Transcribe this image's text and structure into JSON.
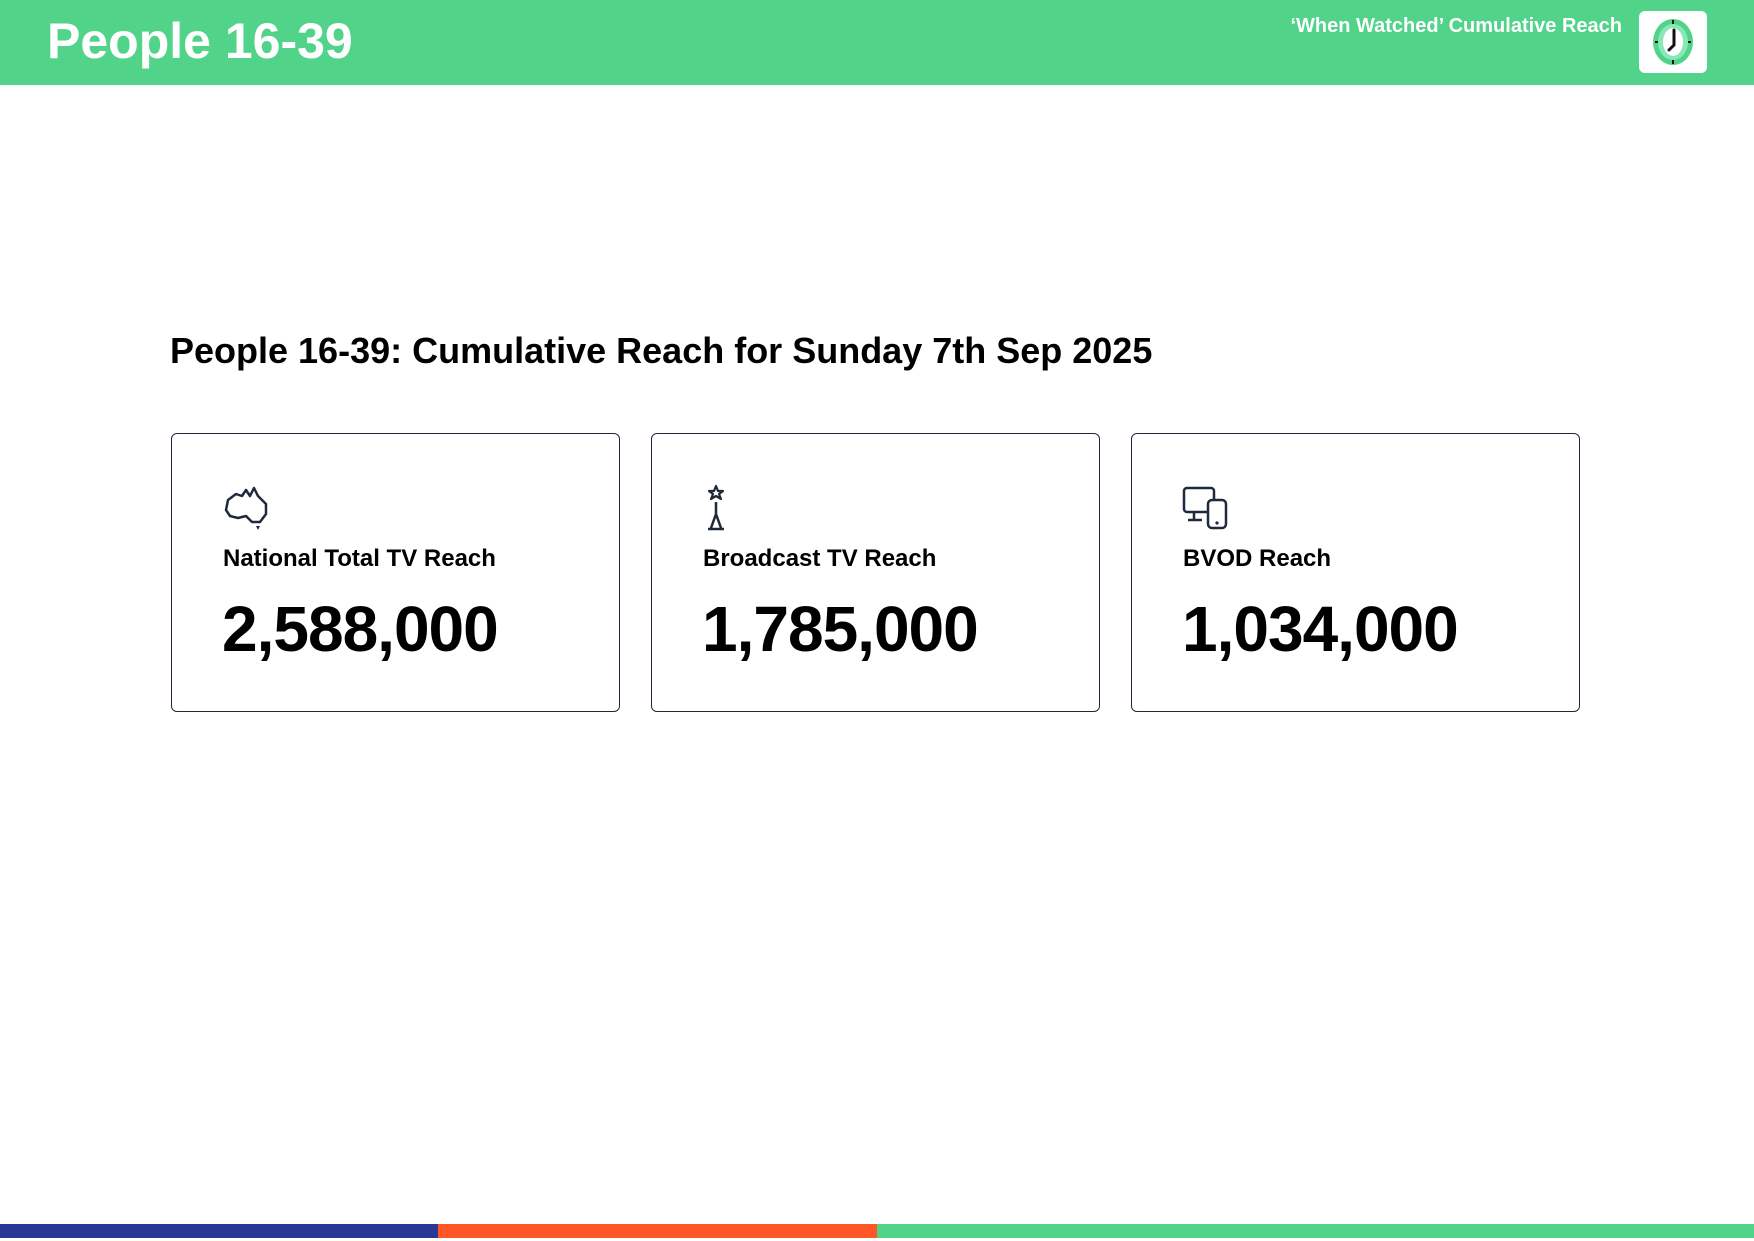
{
  "header": {
    "title": "People 16-39",
    "subtitle": "‘When Watched’ Cumulative Reach",
    "logo_icon": "clock-icon"
  },
  "main": {
    "heading": "People 16-39: Cumulative Reach for Sunday 7th Sep 2025",
    "cards": [
      {
        "icon": "australia-map-icon",
        "label": "National Total TV Reach",
        "value": "2,588,000"
      },
      {
        "icon": "broadcast-tower-icon",
        "label": "Broadcast TV Reach",
        "value": "1,785,000"
      },
      {
        "icon": "devices-icon",
        "label": "BVOD Reach",
        "value": "1,034,000"
      }
    ]
  },
  "colors": {
    "brand_green": "#51d489",
    "navy": "#2b3794",
    "orange": "#ff5627",
    "card_border": "#1e2a3c"
  }
}
